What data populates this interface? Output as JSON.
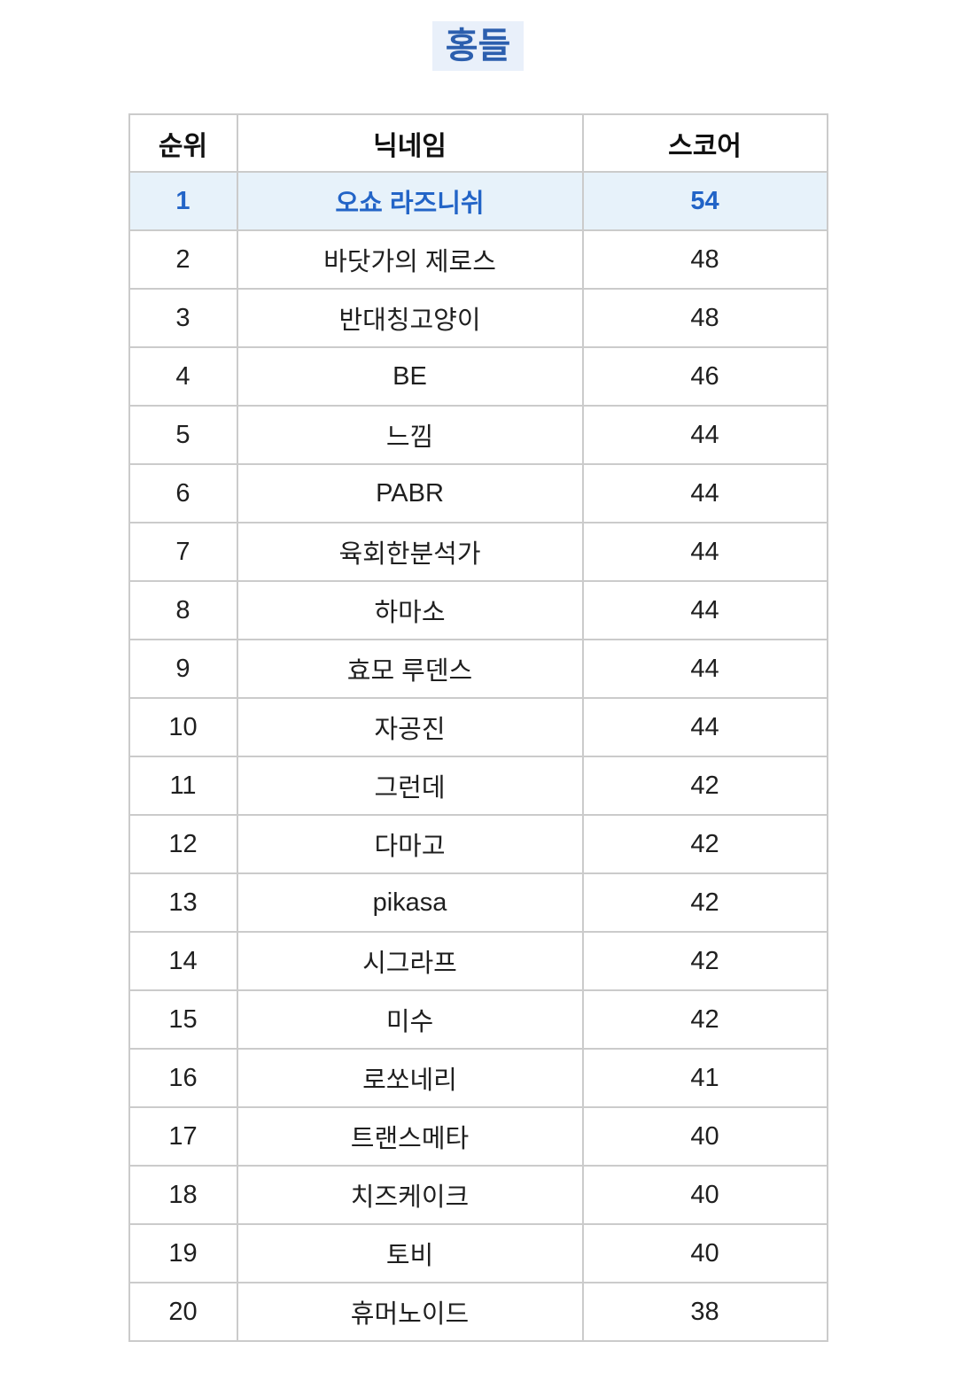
{
  "page": {
    "title": "홍들"
  },
  "table": {
    "headers": [
      "순위",
      "닉네임",
      "스코어"
    ],
    "rows": [
      {
        "rank": "1",
        "nickname": "오쇼 라즈니쉬",
        "score": "54",
        "highlight": true
      },
      {
        "rank": "2",
        "nickname": "바닷가의 제로스",
        "score": "48",
        "highlight": false
      },
      {
        "rank": "3",
        "nickname": "반대칭고양이",
        "score": "48",
        "highlight": false
      },
      {
        "rank": "4",
        "nickname": "BE",
        "score": "46",
        "highlight": false
      },
      {
        "rank": "5",
        "nickname": "느낌",
        "score": "44",
        "highlight": false
      },
      {
        "rank": "6",
        "nickname": "PABR",
        "score": "44",
        "highlight": false
      },
      {
        "rank": "7",
        "nickname": "육회한분석가",
        "score": "44",
        "highlight": false
      },
      {
        "rank": "8",
        "nickname": "하마소",
        "score": "44",
        "highlight": false
      },
      {
        "rank": "9",
        "nickname": "효모 루덴스",
        "score": "44",
        "highlight": false
      },
      {
        "rank": "10",
        "nickname": "자공진",
        "score": "44",
        "highlight": false
      },
      {
        "rank": "11",
        "nickname": "그런데",
        "score": "42",
        "highlight": false
      },
      {
        "rank": "12",
        "nickname": "다마고",
        "score": "42",
        "highlight": false
      },
      {
        "rank": "13",
        "nickname": "pikasa",
        "score": "42",
        "highlight": false
      },
      {
        "rank": "14",
        "nickname": "시그라프",
        "score": "42",
        "highlight": false
      },
      {
        "rank": "15",
        "nickname": "미수",
        "score": "42",
        "highlight": false
      },
      {
        "rank": "16",
        "nickname": "로쏘네리",
        "score": "41",
        "highlight": false
      },
      {
        "rank": "17",
        "nickname": "트랜스메타",
        "score": "40",
        "highlight": false
      },
      {
        "rank": "18",
        "nickname": "치즈케이크",
        "score": "40",
        "highlight": false
      },
      {
        "rank": "19",
        "nickname": "토비",
        "score": "40",
        "highlight": false
      },
      {
        "rank": "20",
        "nickname": "휴머노이드",
        "score": "38",
        "highlight": false
      }
    ]
  },
  "colors": {
    "title_text": "#2c5fae",
    "title_background": "#e9f0fa",
    "highlight_row_background": "#e7f2fa",
    "highlight_row_text": "#2264c7",
    "body_text": "#1f1f1f",
    "border": "#cbcbcb",
    "page_background": "#ffffff"
  }
}
